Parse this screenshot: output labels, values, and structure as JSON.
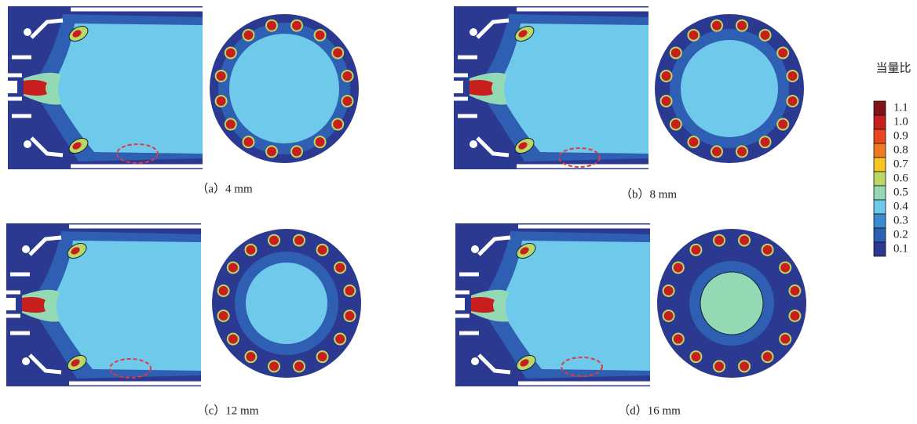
{
  "panels": [
    {
      "caption": "（a）4 mm"
    },
    {
      "caption": "（b）8 mm"
    },
    {
      "caption": "（c）12 mm"
    },
    {
      "caption": "（d）16 mm"
    }
  ],
  "legend": {
    "title": "当量比",
    "labels": [
      "1.1",
      "1.0",
      "0.9",
      "0.8",
      "0.7",
      "0.6",
      "0.5",
      "0.4",
      "0.3",
      "0.2",
      "0.1"
    ]
  }
}
